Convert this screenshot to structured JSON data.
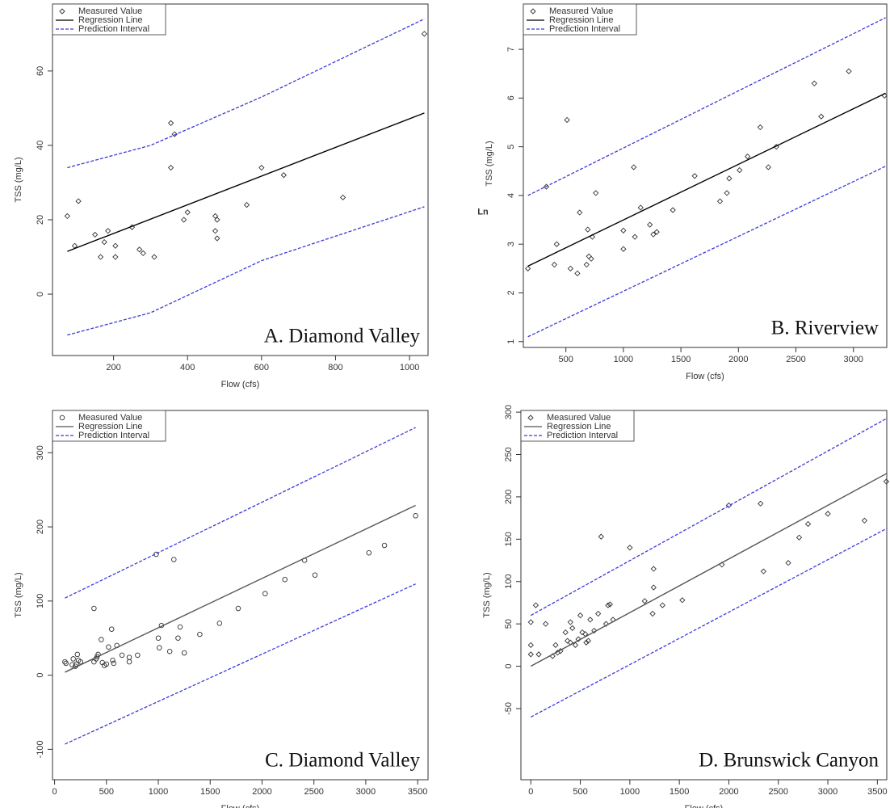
{
  "chart_data": [
    {
      "type": "scatter",
      "annotation": "A. Diamond Valley",
      "xlabel": "Flow (cfs)",
      "ylabel": "TSS (mg/L)",
      "xlim": [
        35,
        1050
      ],
      "ylim": [
        -16.5,
        78
      ],
      "xticks": [
        200,
        400,
        600,
        800,
        1000
      ],
      "yticks": [
        0,
        20,
        40,
        60
      ],
      "series": [
        {
          "name": "Measured Value",
          "color": "#333333",
          "marker": "diamond",
          "x": [
            75,
            95,
            105,
            150,
            165,
            175,
            185,
            205,
            205,
            250,
            270,
            280,
            310,
            355,
            355,
            365,
            390,
            400,
            475,
            475,
            480,
            480,
            560,
            600,
            660,
            820,
            1040
          ],
          "values": [
            21,
            13,
            25,
            16,
            10,
            14,
            17,
            13,
            10,
            18,
            12,
            11,
            10,
            46,
            34,
            43,
            20,
            22,
            21,
            17,
            20,
            15,
            24,
            34,
            32,
            26,
            70
          ]
        },
        {
          "name": "Regression Line",
          "color": "#000000",
          "x": [
            75,
            1040
          ],
          "values": [
            11.5,
            48.7
          ]
        },
        {
          "name": "Prediction Interval",
          "color": "#3a3ad8",
          "x": [
            75,
            300,
            600,
            1040
          ],
          "upper": [
            34,
            40,
            53,
            74
          ],
          "lower": [
            -11,
            -5,
            9,
            23.5
          ]
        }
      ]
    },
    {
      "type": "scatter",
      "annotation": "B. Riverview",
      "xlabel": "Flow (cfs)",
      "ylabel": "TSS (mg/L)",
      "ylabel_prefix": "Ln",
      "xlim": [
        130,
        3290
      ],
      "ylim": [
        0.88,
        7.93
      ],
      "xticks": [
        500,
        1000,
        1500,
        2000,
        2500,
        3000
      ],
      "yticks": [
        1,
        2,
        3,
        4,
        5,
        6,
        7
      ],
      "series": [
        {
          "name": "Measured Value",
          "color": "#333333",
          "marker": "diamond",
          "x": [
            170,
            330,
            400,
            420,
            510,
            540,
            600,
            620,
            680,
            690,
            700,
            720,
            730,
            760,
            1000,
            1000,
            1090,
            1100,
            1150,
            1230,
            1260,
            1290,
            1430,
            1620,
            1840,
            1900,
            1920,
            2010,
            2080,
            2190,
            2260,
            2330,
            2660,
            2720,
            2960,
            3270
          ],
          "values": [
            2.5,
            4.18,
            2.58,
            3.0,
            5.55,
            2.5,
            2.4,
            3.65,
            2.58,
            3.3,
            2.75,
            2.7,
            3.15,
            4.05,
            2.9,
            3.28,
            4.58,
            3.15,
            3.75,
            3.4,
            3.2,
            3.25,
            3.7,
            4.4,
            3.88,
            4.05,
            4.35,
            4.52,
            4.8,
            5.4,
            4.58,
            5.0,
            6.3,
            5.62,
            6.55,
            6.05
          ]
        },
        {
          "name": "Regression Line",
          "color": "#000000",
          "x": [
            170,
            3280
          ],
          "values": [
            2.55,
            6.1
          ]
        },
        {
          "name": "Prediction Interval",
          "color": "#3a3ad8",
          "x": [
            170,
            3280
          ],
          "upper": [
            4.0,
            7.65
          ],
          "lower": [
            1.1,
            4.6
          ]
        }
      ]
    },
    {
      "type": "scatter",
      "annotation": "C. Diamond Valley",
      "xlabel": "Flow (cfs)",
      "ylabel": "TSS (mg/L)",
      "xlim": [
        -20,
        3600
      ],
      "ylim": [
        -141,
        357
      ],
      "xticks": [
        0,
        500,
        1000,
        1500,
        2000,
        2500,
        3000,
        3500
      ],
      "yticks": [
        -100,
        0,
        100,
        200,
        300
      ],
      "series": [
        {
          "name": "Measured Value",
          "color": "#333333",
          "marker": "circle",
          "x": [
            100,
            110,
            170,
            180,
            200,
            210,
            220,
            230,
            250,
            380,
            380,
            400,
            410,
            420,
            450,
            460,
            480,
            500,
            520,
            550,
            560,
            570,
            600,
            650,
            720,
            720,
            800,
            980,
            1000,
            1010,
            1030,
            1110,
            1150,
            1190,
            1210,
            1250,
            1400,
            1590,
            1770,
            2030,
            2220,
            2410,
            2510,
            3030,
            3180,
            3480
          ],
          "values": [
            18,
            16,
            14,
            22,
            12,
            15,
            28,
            20,
            18,
            90,
            18,
            22,
            25,
            28,
            48,
            17,
            13,
            15,
            38,
            62,
            20,
            16,
            40,
            27,
            18,
            24,
            27,
            163,
            50,
            37,
            67,
            32,
            156,
            50,
            65,
            30,
            55,
            70,
            90,
            110,
            129,
            155,
            135,
            165,
            175,
            215
          ]
        },
        {
          "name": "Regression Line",
          "color": "#555555",
          "x": [
            100,
            3480
          ],
          "values": [
            4,
            229
          ]
        },
        {
          "name": "Prediction Interval",
          "color": "#3a3ad8",
          "x": [
            100,
            3480
          ],
          "upper": [
            104,
            334
          ],
          "lower": [
            -93,
            123
          ]
        }
      ]
    },
    {
      "type": "scatter",
      "annotation": "D. Brunswick Canyon",
      "xlabel": "Flow (cfs)",
      "ylabel": "TSS (mg/L)",
      "xlim": [
        -100,
        3595
      ],
      "ylim": [
        -134,
        302
      ],
      "xticks": [
        0,
        500,
        1000,
        1500,
        2000,
        2500,
        3000,
        3500
      ],
      "yticks": [
        -50,
        0,
        50,
        100,
        150,
        200,
        250,
        300
      ],
      "series": [
        {
          "name": "Measured Value",
          "color": "#333333",
          "marker": "diamond",
          "x": [
            0,
            0,
            0,
            50,
            80,
            150,
            220,
            250,
            270,
            300,
            350,
            370,
            400,
            400,
            420,
            450,
            480,
            500,
            520,
            550,
            560,
            580,
            600,
            640,
            680,
            710,
            760,
            780,
            800,
            830,
            1000,
            1150,
            1230,
            1240,
            1240,
            1330,
            1530,
            1930,
            2000,
            2320,
            2350,
            2600,
            2710,
            2800,
            3000,
            3370,
            3590
          ],
          "values": [
            52,
            25,
            14,
            72,
            14,
            50,
            12,
            25,
            16,
            18,
            40,
            30,
            28,
            52,
            45,
            25,
            32,
            60,
            40,
            38,
            28,
            30,
            55,
            42,
            62,
            153,
            50,
            72,
            73,
            55,
            140,
            77,
            62,
            115,
            93,
            72,
            78,
            120,
            190,
            192,
            112,
            122,
            152,
            168,
            180,
            172,
            218
          ]
        },
        {
          "name": "Regression Line",
          "color": "#555555",
          "x": [
            0,
            3600
          ],
          "values": [
            0,
            228
          ]
        },
        {
          "name": "Prediction Interval",
          "color": "#3a3ad8",
          "x": [
            0,
            3600
          ],
          "upper": [
            60,
            293
          ],
          "lower": [
            -60,
            163
          ]
        }
      ]
    }
  ]
}
